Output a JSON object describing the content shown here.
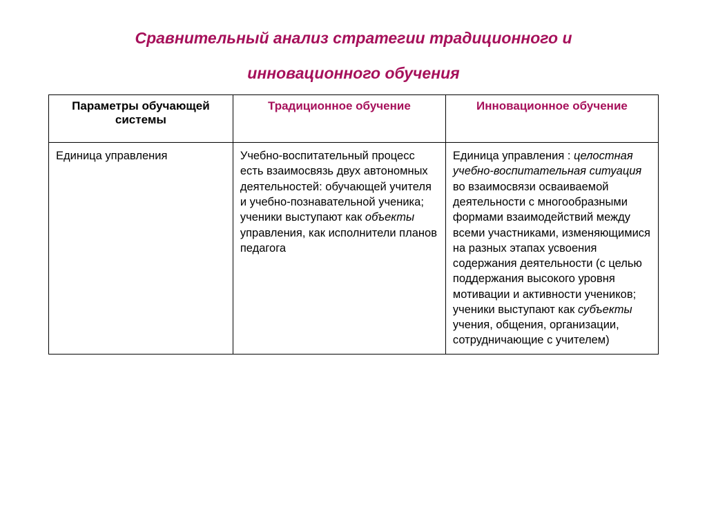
{
  "title_line1": "Сравнительный анализ стратегии традиционного и",
  "title_line2": "инновационного обучения",
  "headers": {
    "col1": "Параметры обучающей системы",
    "col2": "Традиционное обучение",
    "col3": "Инновационное   обучение"
  },
  "row": {
    "param": "Единица управления",
    "trad_pre": "Учебно-воспитательный процесс есть взаимосвязь двух автономных деятельностей: обучающей учителя и учебно-познавательной ученика; ученики выступают как ",
    "trad_ital": "объекты",
    "trad_post": " управления, как исполнители планов педагога",
    "innov_pre1": "Единица управления : ",
    "innov_ital1": "целостная учебно-воспитательная ситуация",
    "innov_mid": " во взаимосвязи осваиваемой деятельности с многообразными формами взаимодействий между всеми участниками, изменяющимися на разных этапах усвоения содержания деятельности (с целью поддержания высокого уровня мотивации и активности учеников; ученики выступают как ",
    "innov_ital2": "субъекты",
    "innov_post": " учения, общения, организации, сотрудничающие с учителем)"
  },
  "colors": {
    "accent": "#a6105a",
    "border": "#000000",
    "background": "#ffffff",
    "text": "#000000"
  },
  "fonts": {
    "title_size": 23,
    "header_size": 17,
    "body_size": 16.5
  }
}
